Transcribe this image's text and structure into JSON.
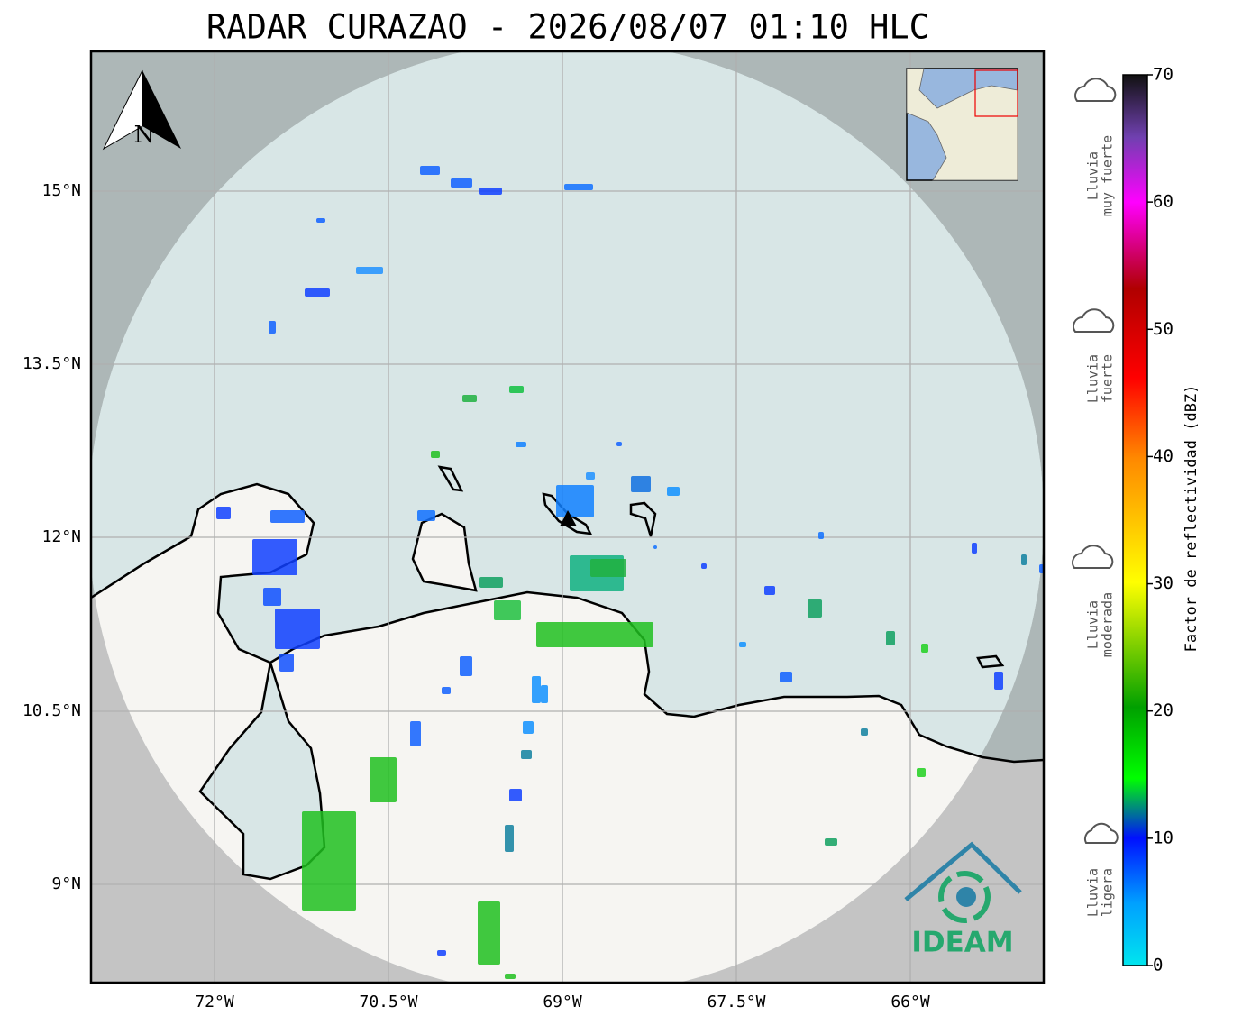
{
  "title": "RADAR CURAZAO - 2026/08/07 01:10 HLC",
  "map": {
    "lon_labels": [
      "72°W",
      "70.5°W",
      "69°W",
      "67.5°W",
      "66°W"
    ],
    "lat_labels": [
      "15°N",
      "13.5°N",
      "12°N",
      "10.5°N",
      "9°N"
    ],
    "north_label": "N",
    "logo_text": "IDEAM"
  },
  "colorbar": {
    "label": "Factor de reflectividad (dBZ)",
    "range": [
      0,
      70
    ],
    "ticks": [
      0,
      10,
      20,
      30,
      40,
      50,
      60,
      70
    ]
  },
  "legend": [
    [
      "Lluvia",
      "muy fuerte"
    ],
    [
      "Lluvia",
      "fuerte"
    ],
    [
      "Lluvia",
      "moderada"
    ],
    [
      "Lluvia",
      "ligera"
    ]
  ]
}
